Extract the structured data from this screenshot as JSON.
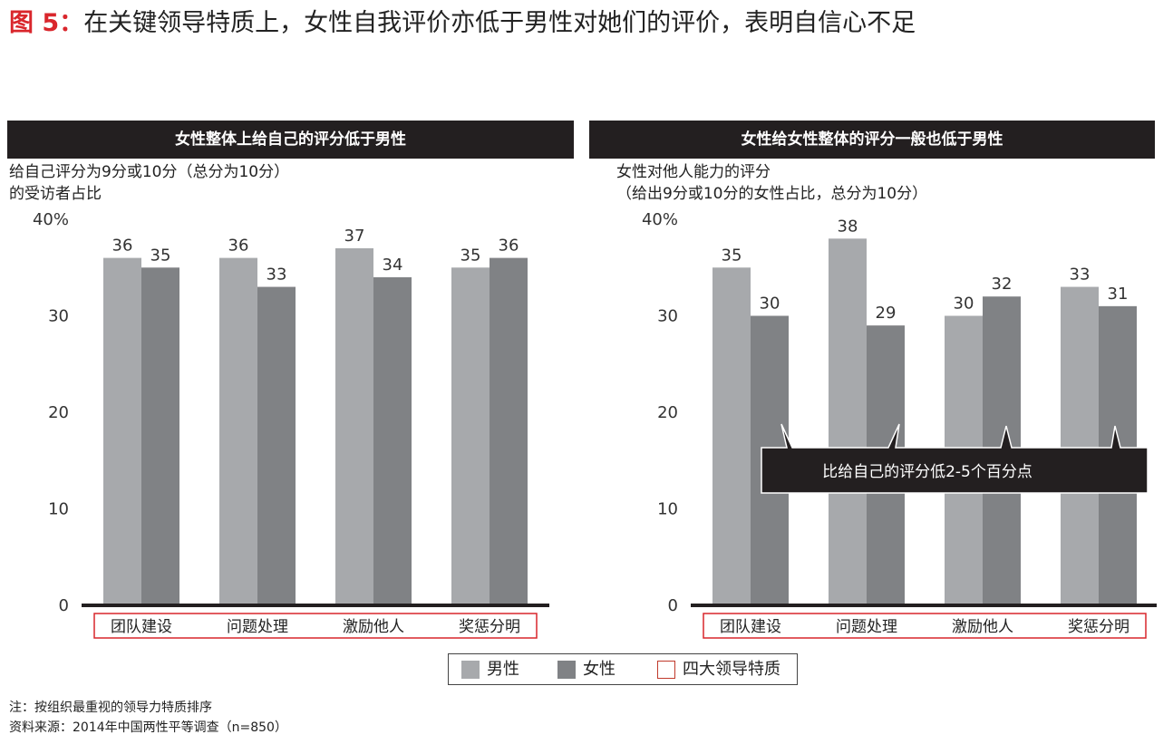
{
  "figure": {
    "label": "图 5：",
    "title": "在关键领导特质上，女性自我评价亦低于男性对她们的评价，表明自信心不足"
  },
  "panels": [
    {
      "header": "女性整体上给自己的评分低于男性",
      "subtitle_line1": "给自己评分为9分或10分（总分为10分）",
      "subtitle_line2": "的受访者占比"
    },
    {
      "header": "女性给女性整体的评分一般也低于男性",
      "subtitle_line1": "女性对他人能力的评分",
      "subtitle_line2": "（给出9分或10分的女性占比，总分为10分）"
    }
  ],
  "chart_data": [
    {
      "type": "bar",
      "title": "女性整体上给自己的评分低于男性",
      "ylabel": "给自己评分为9分或10分（总分为10分）的受访者占比",
      "categories": [
        "团队建设",
        "问题处理",
        "激励他人",
        "奖惩分明"
      ],
      "series": [
        {
          "name": "男性",
          "values": [
            36,
            36,
            37,
            35
          ]
        },
        {
          "name": "女性",
          "values": [
            35,
            33,
            34,
            36
          ]
        }
      ],
      "yticks": [
        "40%",
        "30",
        "20",
        "10",
        "0"
      ],
      "ylim": [
        0,
        40
      ],
      "grid": false,
      "colors": {
        "男性": "#a7a9ac",
        "女性": "#808285"
      }
    },
    {
      "type": "bar",
      "title": "女性给女性整体的评分一般也低于男性",
      "ylabel": "女性对他人能力的评分（给出9分或10分的女性占比，总分为10分）",
      "categories": [
        "团队建设",
        "问题处理",
        "激励他人",
        "奖惩分明"
      ],
      "series": [
        {
          "name": "男性",
          "values": [
            35,
            38,
            30,
            33
          ]
        },
        {
          "name": "女性",
          "values": [
            30,
            29,
            32,
            31
          ]
        }
      ],
      "yticks": [
        "40%",
        "30",
        "20",
        "10",
        "0"
      ],
      "ylim": [
        0,
        40
      ],
      "grid": false,
      "annotation": "比给自己的评分低2-5个百分点",
      "colors": {
        "男性": "#a7a9ac",
        "女性": "#808285"
      }
    }
  ],
  "legend": [
    {
      "label": "男性",
      "color": "#a7a9ac",
      "kind": "fill"
    },
    {
      "label": "女性",
      "color": "#808285",
      "kind": "fill"
    },
    {
      "label": "四大领导特质",
      "color": "#c0392b",
      "kind": "outline"
    }
  ],
  "notes": {
    "note": "注：按组织最重视的领导力特质排序",
    "source": "资料来源：2014年中国两性平等调查（n=850）"
  },
  "colors": {
    "header_bg": "#231f20",
    "accent_red": "#d9262c",
    "axis": "#231f20"
  }
}
